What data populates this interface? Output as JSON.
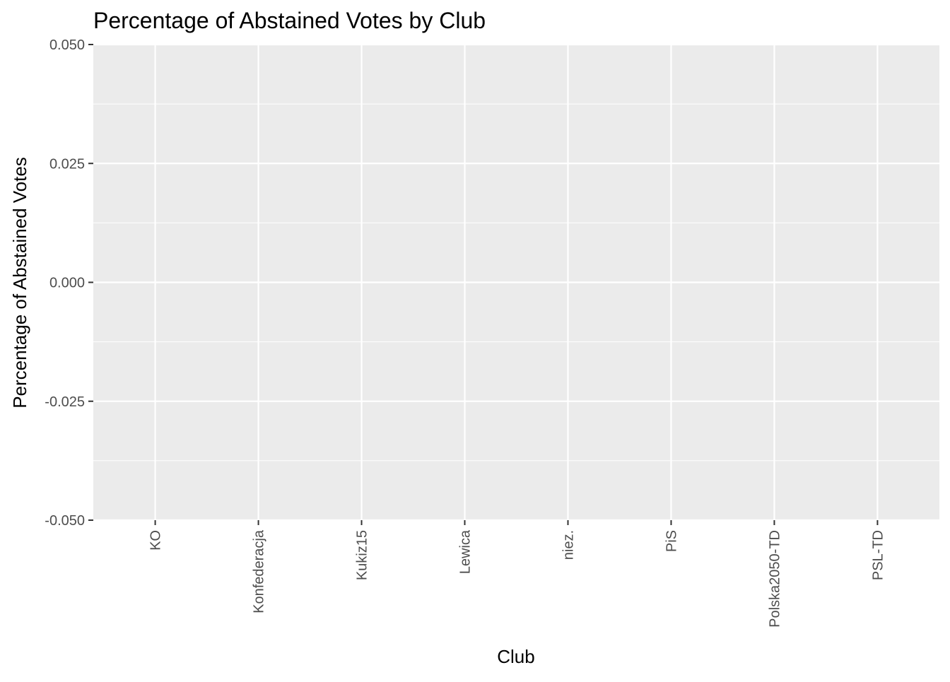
{
  "chart_data": {
    "type": "bar",
    "title": "Percentage of Abstained Votes by Club",
    "xlabel": "Club",
    "ylabel": "Percentage of Abstained Votes",
    "categories": [
      "KO",
      "Konfederacja",
      "Kukiz15",
      "Lewica",
      "niez.",
      "PiS",
      "Polska2050-TD",
      "PSL-TD"
    ],
    "values": [
      0,
      0,
      0,
      0,
      0,
      0,
      0,
      0
    ],
    "ylim": [
      -0.05,
      0.05
    ],
    "yticks": [
      -0.05,
      -0.025,
      0,
      0.025,
      0.05
    ],
    "ytick_labels": [
      "-0.050",
      "-0.025",
      "0.000",
      "0.025",
      "0.050"
    ],
    "grid": true,
    "legend": "none",
    "colors": {
      "panel_background": "#EBEBEB",
      "grid": "#FFFFFF",
      "tick_text": "#4D4D4D",
      "bar_fill": "#595959"
    }
  }
}
